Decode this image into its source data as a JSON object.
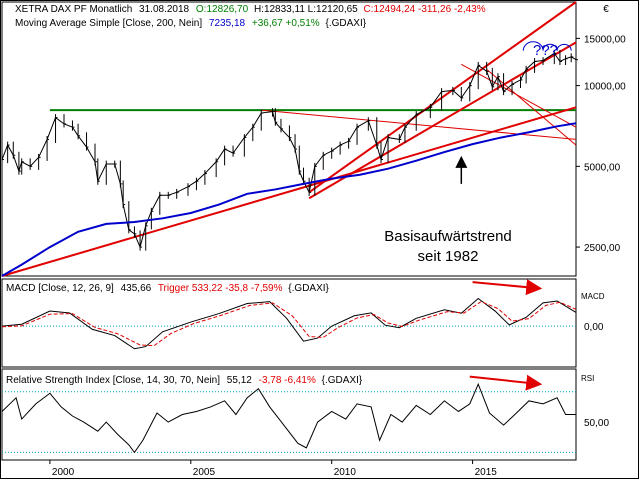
{
  "header": {
    "price": {
      "symbol": "XETRA DAX PF Monatlich",
      "date": "31.08.2018",
      "ohlc_open": "O:12826,70",
      "ohlc_high_low": "H:12833,11 L:12120,65",
      "ohlc_close": "C:12494,24 -311,26 -2,43%"
    },
    "ma": {
      "label": "Moving Average Simple [Close, 200, Nein]",
      "value": "7235,18",
      "change": "+36,67 +0,51%",
      "instrument": "{.GDAXI}"
    },
    "macd": {
      "label": "MACD [Close, 12, 26, 9]",
      "value": "435,66",
      "trigger": "Trigger 533,22 -35,8 -7,59%",
      "instrument": "{.GDAXI}"
    },
    "rsi": {
      "label": "Relative Strength Index [Close, 14, 30, 70, Nein]",
      "value": "55,12",
      "change": "-3,78 -6,41%",
      "instrument": "{.GDAXI}"
    }
  },
  "annotations": {
    "trend_line1": "Basisaufwärtstrend",
    "trend_line2": "seit 1982",
    "question": "???"
  },
  "currency_symbol": "€",
  "chart_data": [
    {
      "type": "line",
      "panel": "price",
      "scale": "log",
      "ylim": [
        1950,
        20500
      ],
      "ticks": [
        2500,
        5000,
        10000,
        15000
      ],
      "tick_labels": [
        "2500,00",
        "5000,00",
        "10000,00",
        "15000,00"
      ],
      "x_ticks": [
        2000,
        2005,
        2010,
        2015
      ],
      "x_tick_labels": [
        "2000",
        "2005",
        "2010",
        "2015"
      ],
      "xlim": [
        1998.3,
        2018.67
      ],
      "series": [
        {
          "name": "XETRA DAX PF Monatlich",
          "style": "ohlc-bars",
          "color": "#000000",
          "points": [
            [
              1998.3,
              5300
            ],
            [
              1998.5,
              6000
            ],
            [
              1998.7,
              5500
            ],
            [
              1998.9,
              4800
            ],
            [
              1999.0,
              5200
            ],
            [
              1999.3,
              5000
            ],
            [
              1999.6,
              5400
            ],
            [
              1999.9,
              6300
            ],
            [
              2000.2,
              7600
            ],
            [
              2000.5,
              7200
            ],
            [
              2000.8,
              7000
            ],
            [
              2001.0,
              6500
            ],
            [
              2001.3,
              5900
            ],
            [
              2001.6,
              5200
            ],
            [
              2001.7,
              4400
            ],
            [
              2002.0,
              5100
            ],
            [
              2002.3,
              5100
            ],
            [
              2002.5,
              4300
            ],
            [
              2002.6,
              3600
            ],
            [
              2002.8,
              2900
            ],
            [
              2003.0,
              2800
            ],
            [
              2003.2,
              2500
            ],
            [
              2003.4,
              3000
            ],
            [
              2003.6,
              3400
            ],
            [
              2003.9,
              3900
            ],
            [
              2004.2,
              3900
            ],
            [
              2004.5,
              4000
            ],
            [
              2004.9,
              4200
            ],
            [
              2005.2,
              4400
            ],
            [
              2005.5,
              4700
            ],
            [
              2005.9,
              5200
            ],
            [
              2006.2,
              5800
            ],
            [
              2006.5,
              5600
            ],
            [
              2006.9,
              6400
            ],
            [
              2007.2,
              7000
            ],
            [
              2007.5,
              7900
            ],
            [
              2007.9,
              8000
            ],
            [
              2008.0,
              7300
            ],
            [
              2008.2,
              6900
            ],
            [
              2008.5,
              6400
            ],
            [
              2008.7,
              5800
            ],
            [
              2008.85,
              4800
            ],
            [
              2009.0,
              4400
            ],
            [
              2009.2,
              4000
            ],
            [
              2009.4,
              5000
            ],
            [
              2009.7,
              5500
            ],
            [
              2010.0,
              5700
            ],
            [
              2010.3,
              6000
            ],
            [
              2010.6,
              6200
            ],
            [
              2010.9,
              7000
            ],
            [
              2011.3,
              7400
            ],
            [
              2011.6,
              6000
            ],
            [
              2011.75,
              5300
            ],
            [
              2012.0,
              6400
            ],
            [
              2012.4,
              6300
            ],
            [
              2012.6,
              7000
            ],
            [
              2013.0,
              7800
            ],
            [
              2013.5,
              8300
            ],
            [
              2013.9,
              9500
            ],
            [
              2014.3,
              9600
            ],
            [
              2014.6,
              9000
            ],
            [
              2014.9,
              10000
            ],
            [
              2015.2,
              11900
            ],
            [
              2015.5,
              11300
            ],
            [
              2015.7,
              9900
            ],
            [
              2015.9,
              10800
            ],
            [
              2016.1,
              9500
            ],
            [
              2016.4,
              10100
            ],
            [
              2016.7,
              10500
            ],
            [
              2016.9,
              11500
            ],
            [
              2017.2,
              12300
            ],
            [
              2017.5,
              12400
            ],
            [
              2017.9,
              13200
            ],
            [
              2018.1,
              12300
            ],
            [
              2018.3,
              12600
            ],
            [
              2018.5,
              12800
            ],
            [
              2018.67,
              12494
            ]
          ]
        },
        {
          "name": "Moving Average Simple [Close, 200, Nein]",
          "style": "line",
          "color": "#0000cc",
          "points": [
            [
              1998.3,
              1950
            ],
            [
              1999.0,
              2150
            ],
            [
              2000.0,
              2500
            ],
            [
              2001.0,
              2850
            ],
            [
              2002.0,
              3050
            ],
            [
              2003.0,
              3100
            ],
            [
              2004.0,
              3200
            ],
            [
              2005.0,
              3350
            ],
            [
              2006.0,
              3600
            ],
            [
              2007.0,
              3950
            ],
            [
              2008.0,
              4100
            ],
            [
              2009.0,
              4300
            ],
            [
              2010.0,
              4500
            ],
            [
              2011.0,
              4650
            ],
            [
              2012.0,
              4900
            ],
            [
              2013.0,
              5250
            ],
            [
              2014.0,
              5650
            ],
            [
              2015.0,
              6050
            ],
            [
              2016.0,
              6400
            ],
            [
              2017.0,
              6700
            ],
            [
              2018.0,
              7050
            ],
            [
              2018.67,
              7235
            ]
          ]
        }
      ]
    },
    {
      "type": "line",
      "panel": "macd",
      "ylim": [
        -1300,
        1500
      ],
      "ticks": [
        0
      ],
      "tick_labels": [
        "0,00"
      ],
      "y_title": "MACD",
      "series": [
        {
          "name": "MACD",
          "color": "#000000",
          "points": [
            [
              1998.3,
              0
            ],
            [
              1999.0,
              60
            ],
            [
              2000.0,
              480
            ],
            [
              2000.7,
              420
            ],
            [
              2001.5,
              -100
            ],
            [
              2002.3,
              -300
            ],
            [
              2003.0,
              -720
            ],
            [
              2003.4,
              -650
            ],
            [
              2004.0,
              -180
            ],
            [
              2005.0,
              130
            ],
            [
              2006.0,
              400
            ],
            [
              2007.0,
              720
            ],
            [
              2007.8,
              780
            ],
            [
              2008.4,
              250
            ],
            [
              2009.0,
              -480
            ],
            [
              2009.5,
              -380
            ],
            [
              2010.0,
              0
            ],
            [
              2010.8,
              330
            ],
            [
              2011.4,
              420
            ],
            [
              2011.9,
              30
            ],
            [
              2012.4,
              -50
            ],
            [
              2013.0,
              250
            ],
            [
              2014.0,
              520
            ],
            [
              2014.6,
              410
            ],
            [
              2015.2,
              880
            ],
            [
              2015.8,
              480
            ],
            [
              2016.3,
              40
            ],
            [
              2016.9,
              280
            ],
            [
              2017.5,
              740
            ],
            [
              2018.0,
              800
            ],
            [
              2018.67,
              436
            ]
          ]
        },
        {
          "name": "Trigger",
          "style": "dashed",
          "color": "#e00000",
          "points": [
            [
              1998.3,
              -20
            ],
            [
              1999.0,
              10
            ],
            [
              2000.0,
              380
            ],
            [
              2000.8,
              400
            ],
            [
              2001.6,
              -40
            ],
            [
              2002.4,
              -240
            ],
            [
              2003.2,
              -600
            ],
            [
              2003.7,
              -620
            ],
            [
              2004.3,
              -230
            ],
            [
              2005.1,
              80
            ],
            [
              2006.1,
              350
            ],
            [
              2007.1,
              660
            ],
            [
              2007.9,
              740
            ],
            [
              2008.6,
              330
            ],
            [
              2009.2,
              -330
            ],
            [
              2009.7,
              -360
            ],
            [
              2010.2,
              -60
            ],
            [
              2010.9,
              260
            ],
            [
              2011.5,
              370
            ],
            [
              2012.0,
              100
            ],
            [
              2012.5,
              -10
            ],
            [
              2013.1,
              190
            ],
            [
              2014.1,
              460
            ],
            [
              2014.7,
              420
            ],
            [
              2015.3,
              780
            ],
            [
              2015.9,
              560
            ],
            [
              2016.4,
              160
            ],
            [
              2017.0,
              240
            ],
            [
              2017.6,
              660
            ],
            [
              2018.1,
              760
            ],
            [
              2018.67,
              533
            ]
          ]
        }
      ]
    },
    {
      "type": "line",
      "panel": "rsi",
      "ylim": [
        25,
        85
      ],
      "ticks": [
        50
      ],
      "tick_labels": [
        "50,00"
      ],
      "y_title": "RSI",
      "reference_lines": [
        30,
        70
      ],
      "series": [
        {
          "name": "Relative Strength Index",
          "color": "#000000",
          "points": [
            [
              1998.3,
              57
            ],
            [
              1998.8,
              66
            ],
            [
              1999.0,
              52
            ],
            [
              1999.5,
              62
            ],
            [
              2000.0,
              69
            ],
            [
              2000.4,
              60
            ],
            [
              2000.8,
              54
            ],
            [
              2001.2,
              50
            ],
            [
              2001.7,
              44
            ],
            [
              2002.0,
              50
            ],
            [
              2002.4,
              42
            ],
            [
              2002.8,
              35
            ],
            [
              2003.0,
              30
            ],
            [
              2003.3,
              38
            ],
            [
              2003.8,
              56
            ],
            [
              2004.2,
              50
            ],
            [
              2004.7,
              55
            ],
            [
              2005.2,
              57
            ],
            [
              2005.7,
              60
            ],
            [
              2006.2,
              64
            ],
            [
              2006.6,
              55
            ],
            [
              2007.0,
              66
            ],
            [
              2007.4,
              72
            ],
            [
              2007.8,
              60
            ],
            [
              2008.3,
              48
            ],
            [
              2008.8,
              36
            ],
            [
              2009.1,
              33
            ],
            [
              2009.5,
              50
            ],
            [
              2010.0,
              57
            ],
            [
              2010.5,
              52
            ],
            [
              2010.9,
              62
            ],
            [
              2011.4,
              60
            ],
            [
              2011.7,
              38
            ],
            [
              2012.1,
              55
            ],
            [
              2012.5,
              50
            ],
            [
              2013.0,
              61
            ],
            [
              2013.5,
              55
            ],
            [
              2014.0,
              64
            ],
            [
              2014.5,
              57
            ],
            [
              2014.9,
              62
            ],
            [
              2015.2,
              75
            ],
            [
              2015.6,
              56
            ],
            [
              2016.1,
              48
            ],
            [
              2016.5,
              55
            ],
            [
              2017.0,
              64
            ],
            [
              2017.5,
              62
            ],
            [
              2018.0,
              66
            ],
            [
              2018.3,
              55
            ],
            [
              2018.67,
              55
            ]
          ]
        }
      ]
    }
  ],
  "overlays": {
    "trendlines_color": "#e00000",
    "horizontal_line_color": "#008000",
    "horizontal_line_value": 8100
  }
}
